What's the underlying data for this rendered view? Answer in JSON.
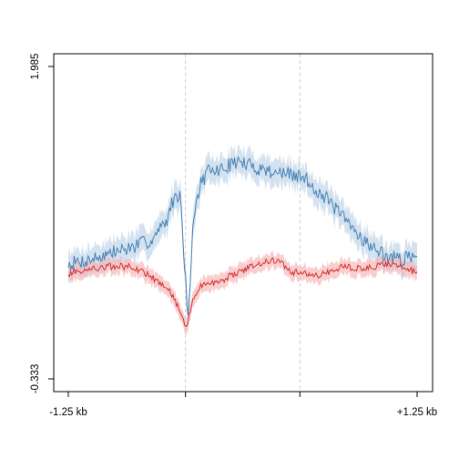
{
  "chart_data": {
    "type": "line",
    "title": "",
    "xlabel": "",
    "ylabel": "",
    "x_ticks": [
      "-1.25 kb",
      "",
      "",
      "+1.25 kb"
    ],
    "y_ticks": [
      "-0.333",
      "1.985"
    ],
    "xlim": [
      -1.25,
      1.25
    ],
    "ylim": [
      -0.333,
      1.985
    ],
    "vertical_reference_lines": [
      -0.41,
      0.41
    ],
    "grid": false,
    "legend": "none",
    "colors": {
      "blue_line": "#4682B4",
      "blue_band": "#B8CFE6",
      "red_line": "#D62F2F",
      "red_band": "#F2A6A8",
      "reference_line": "#CCCCCC"
    },
    "series": [
      {
        "color": "blue",
        "x": [
          -1.25,
          -1.1,
          -0.95,
          -0.8,
          -0.65,
          -0.55,
          -0.48,
          -0.44,
          -0.42,
          -0.39,
          -0.35,
          -0.3,
          -0.25,
          -0.15,
          -0.05,
          0.05,
          0.15,
          0.25,
          0.35,
          0.45,
          0.55,
          0.65,
          0.75,
          0.85,
          0.95,
          1.05,
          1.15,
          1.25
        ],
        "values": [
          0.52,
          0.55,
          0.6,
          0.64,
          0.7,
          0.83,
          1.05,
          1.0,
          0.56,
          0.12,
          0.9,
          1.12,
          1.2,
          1.22,
          1.28,
          1.25,
          1.22,
          1.2,
          1.18,
          1.15,
          1.05,
          0.95,
          0.82,
          0.72,
          0.62,
          0.57,
          0.55,
          0.6
        ],
        "band_halfwidth": 0.1
      },
      {
        "color": "red",
        "x": [
          -1.25,
          -1.1,
          -0.95,
          -0.8,
          -0.7,
          -0.62,
          -0.55,
          -0.5,
          -0.46,
          -0.43,
          -0.41,
          -0.39,
          -0.36,
          -0.32,
          -0.25,
          -0.15,
          -0.05,
          0.05,
          0.15,
          0.25,
          0.35,
          0.45,
          0.55,
          0.65,
          0.75,
          0.85,
          0.95,
          1.05,
          1.15,
          1.25
        ],
        "values": [
          0.45,
          0.48,
          0.5,
          0.5,
          0.45,
          0.4,
          0.35,
          0.28,
          0.2,
          0.12,
          0.05,
          0.1,
          0.25,
          0.34,
          0.37,
          0.4,
          0.45,
          0.5,
          0.53,
          0.55,
          0.46,
          0.45,
          0.43,
          0.48,
          0.5,
          0.48,
          0.5,
          0.52,
          0.5,
          0.45
        ],
        "band_halfwidth": 0.06
      }
    ]
  }
}
